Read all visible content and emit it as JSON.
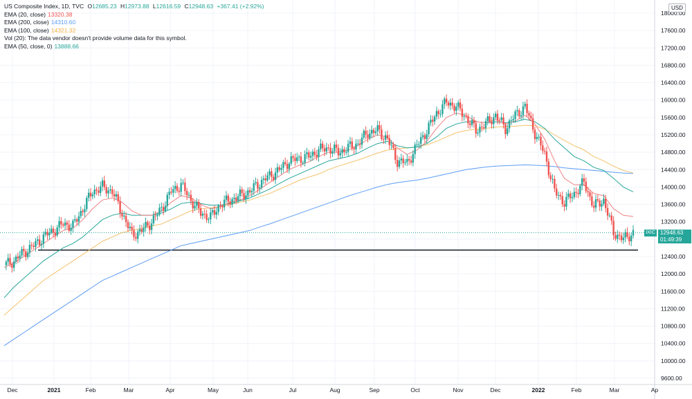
{
  "header": {
    "symbol": "US Composite Index, 1D, TVC",
    "o_label": "O",
    "o_value": "12685.23",
    "h_label": "H",
    "h_value": "12973.88",
    "l_label": "L",
    "l_value": "12616.59",
    "c_label": "C",
    "c_value": "12948.63",
    "change": "+367.41 (+2.92%)"
  },
  "indicators": [
    {
      "label": "EMA (20, close)",
      "value": "13320.38",
      "color": "#f05350"
    },
    {
      "label": "EMA (200, close)",
      "value": "14310.60",
      "color": "#5b9cf6"
    },
    {
      "label": "EMA (100, close)",
      "value": "14321.32",
      "color": "#f5b041"
    },
    {
      "label": "Vol (20): The data vendor doesn't provide volume data for this symbol.",
      "value": "",
      "color": "#131722"
    },
    {
      "label": "EMA (50, close, 0)",
      "value": "13888.66",
      "color": "#26a69a"
    }
  ],
  "currency": "USD",
  "price_badge": {
    "symbol": "IXIC",
    "price": "12948.63",
    "countdown": "01:49:39"
  },
  "colors": {
    "up": "#26a69a",
    "down": "#ef5350",
    "ema20": "#f08080",
    "ema50": "#26a69a",
    "ema100": "#f5c26b",
    "ema200": "#5b9cf6",
    "support": "#131722"
  },
  "chart_data": {
    "type": "candlestick",
    "y_axis_ticks": [
      9600,
      10000,
      10400,
      10800,
      11200,
      11600,
      12000,
      12400,
      12800,
      13200,
      13600,
      14000,
      14400,
      14800,
      15200,
      15600,
      16000,
      16400,
      16800,
      17200,
      17600,
      18000
    ],
    "ylim": [
      9550,
      18050
    ],
    "x_axis_labels": [
      "Dec",
      "2021",
      "Feb",
      "Mar",
      "Apr",
      "May",
      "Jun",
      "Jul",
      "Aug",
      "Sep",
      "Oct",
      "Nov",
      "Dec",
      "2022",
      "Feb",
      "Mar",
      "Ap"
    ],
    "support_level": 12550,
    "close_series_weekly": [
      12200,
      12300,
      12500,
      12650,
      12850,
      13000,
      13150,
      13100,
      13500,
      13900,
      14000,
      13900,
      13400,
      12900,
      13000,
      13200,
      13500,
      13900,
      14050,
      13700,
      13400,
      13300,
      13600,
      13700,
      13800,
      13900,
      14100,
      14250,
      14400,
      14600,
      14650,
      14700,
      14850,
      14900,
      14800,
      14900,
      15000,
      15250,
      15300,
      15100,
      14600,
      14550,
      14950,
      15300,
      15700,
      15950,
      15850,
      15600,
      15300,
      15450,
      15650,
      15350,
      15650,
      15850,
      15250,
      14750,
      13900,
      13650,
      13850,
      14100,
      13550,
      13700,
      12950,
      12800,
      12948.63
    ],
    "ema20_weekly": [
      12150,
      12250,
      12400,
      12550,
      12700,
      12850,
      13000,
      13050,
      13250,
      13500,
      13700,
      13750,
      13650,
      13450,
      13350,
      13350,
      13450,
      13650,
      13800,
      13750,
      13600,
      13500,
      13550,
      13650,
      13700,
      13800,
      13950,
      14100,
      14250,
      14400,
      14500,
      14580,
      14700,
      14800,
      14800,
      14850,
      14950,
      15100,
      15200,
      15150,
      14900,
      14750,
      14850,
      15050,
      15350,
      15600,
      15700,
      15650,
      15500,
      15480,
      15550,
      15450,
      15520,
      15650,
      15450,
      15100,
      14600,
      14200,
      14050,
      14050,
      13850,
      13800,
      13500,
      13350,
      13320.38
    ],
    "ema50_weekly": [
      11450,
      11700,
      11900,
      12100,
      12300,
      12450,
      12600,
      12700,
      12850,
      13050,
      13250,
      13350,
      13400,
      13350,
      13350,
      13350,
      13400,
      13500,
      13620,
      13650,
      13620,
      13580,
      13580,
      13620,
      13680,
      13750,
      13850,
      13950,
      14080,
      14200,
      14300,
      14400,
      14500,
      14600,
      14650,
      14700,
      14780,
      14900,
      15000,
      15050,
      14950,
      14900,
      14920,
      15000,
      15150,
      15350,
      15450,
      15500,
      15500,
      15480,
      15500,
      15480,
      15500,
      15560,
      15500,
      15350,
      15100,
      14900,
      14700,
      14600,
      14450,
      14380,
      14200,
      14000,
      13888.66
    ],
    "ema100_weekly": [
      11050,
      11250,
      11450,
      11650,
      11850,
      12000,
      12150,
      12300,
      12450,
      12600,
      12750,
      12850,
      12950,
      13000,
      13050,
      13100,
      13150,
      13250,
      13350,
      13450,
      13500,
      13520,
      13550,
      13600,
      13650,
      13700,
      13780,
      13850,
      13950,
      14050,
      14150,
      14230,
      14300,
      14400,
      14480,
      14550,
      14620,
      14700,
      14780,
      14850,
      14880,
      14900,
      14920,
      14970,
      15050,
      15150,
      15250,
      15300,
      15330,
      15350,
      15380,
      15390,
      15400,
      15420,
      15410,
      15330,
      15200,
      15070,
      14950,
      14850,
      14700,
      14600,
      14480,
      14380,
      14321.32
    ],
    "ema200_weekly": [
      10350,
      10500,
      10650,
      10800,
      10950,
      11100,
      11250,
      11400,
      11550,
      11700,
      11850,
      11950,
      12050,
      12150,
      12250,
      12350,
      12450,
      12550,
      12650,
      12700,
      12750,
      12800,
      12850,
      12900,
      12950,
      13000,
      13080,
      13150,
      13230,
      13310,
      13390,
      13470,
      13550,
      13630,
      13710,
      13790,
      13860,
      13930,
      14000,
      14060,
      14100,
      14130,
      14160,
      14200,
      14250,
      14300,
      14350,
      14400,
      14430,
      14460,
      14480,
      14490,
      14500,
      14510,
      14500,
      14490,
      14470,
      14440,
      14420,
      14400,
      14380,
      14360,
      14340,
      14320,
      14310.6
    ]
  }
}
